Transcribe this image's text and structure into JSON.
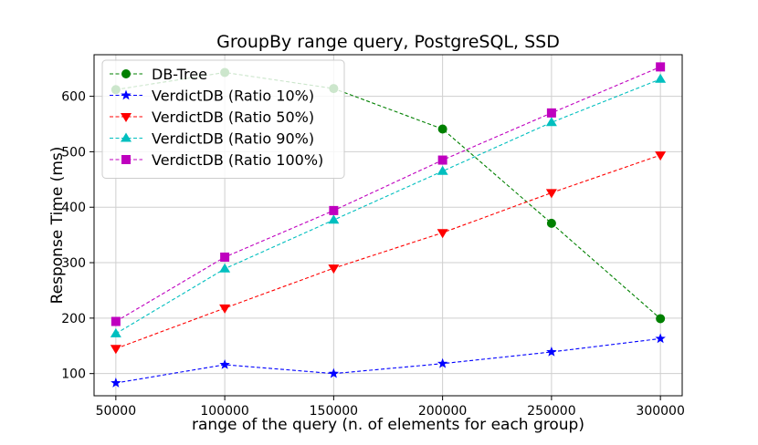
{
  "chart_data": {
    "type": "line",
    "title": "GroupBy range query, PostgreSQL, SSD",
    "xlabel": "range of the query  (n. of elements for each group)",
    "ylabel": "Response Time (ms)",
    "x": [
      50000,
      100000,
      150000,
      200000,
      250000,
      300000
    ],
    "x_tick_labels": [
      "50000",
      "100000",
      "150000",
      "200000",
      "250000",
      "300000"
    ],
    "xlim": [
      40000,
      310000
    ],
    "ylim": [
      60,
      675
    ],
    "yticks": [
      100,
      200,
      300,
      400,
      500,
      600
    ],
    "y_tick_labels": [
      "100",
      "200",
      "300",
      "400",
      "500",
      "600"
    ],
    "grid": true,
    "legend_position": "top-left",
    "series": [
      {
        "name": "DB-Tree",
        "values": [
          612,
          643,
          614,
          541,
          371,
          199
        ],
        "color": "#008000",
        "marker": "circle"
      },
      {
        "name": "VerdictDB (Ratio 10%)",
        "values": [
          83,
          116,
          100,
          118,
          139,
          163
        ],
        "color": "#0000ff",
        "marker": "star"
      },
      {
        "name": "VerdictDB (Ratio 50%)",
        "values": [
          145,
          218,
          290,
          354,
          426,
          494
        ],
        "color": "#ff0000",
        "marker": "triangle-down"
      },
      {
        "name": "VerdictDB (Ratio 90%)",
        "values": [
          172,
          289,
          377,
          465,
          553,
          631
        ],
        "color": "#00bfbf",
        "marker": "triangle-up"
      },
      {
        "name": "VerdictDB (Ratio 100%)",
        "values": [
          194,
          310,
          394,
          485,
          570,
          653
        ],
        "color": "#bf00bf",
        "marker": "square"
      }
    ]
  }
}
